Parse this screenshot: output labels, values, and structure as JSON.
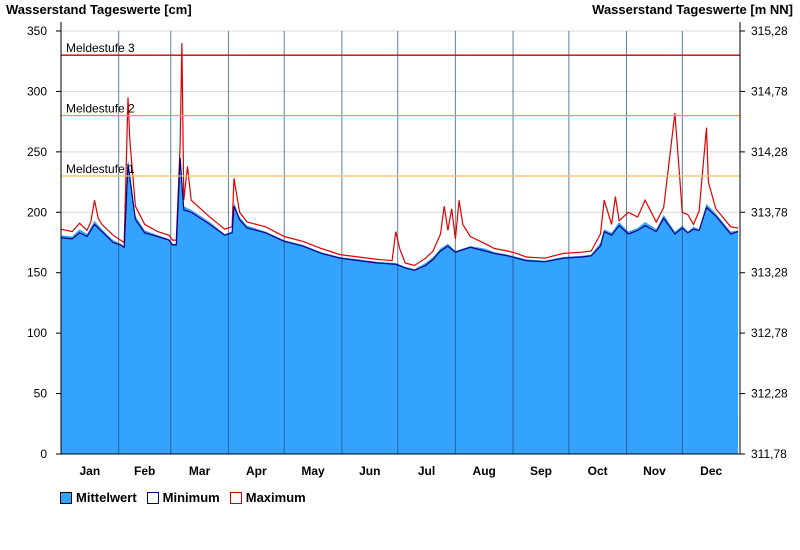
{
  "header": {
    "left_title": "Wasserstand Tageswerte [cm]",
    "right_title": "Wasserstand Tageswerte [m NN]"
  },
  "legend": [
    {
      "label": "Mittelwert",
      "fill": "#33a3ff",
      "border": "#000000"
    },
    {
      "label": "Minimum",
      "fill": "#ffffff",
      "border": "#000080"
    },
    {
      "label": "Maximum",
      "fill": "#ffffff",
      "border": "#cc0000"
    }
  ],
  "colors": {
    "area": "#33a3ff",
    "minimum_line": "#000080",
    "maximum_line": "#e00000",
    "meldestufe_1": "#f0c060",
    "meldestufe_2": "#f0a030",
    "meldestufe_3": "#cc0000",
    "grid": "#d8d8d8",
    "month_separator": "#1a4a80"
  },
  "chart_data": {
    "type": "area",
    "x_unit": "day of year",
    "months": [
      "Jan",
      "Feb",
      "Mar",
      "Apr",
      "May",
      "Jun",
      "Jul",
      "Aug",
      "Sep",
      "Oct",
      "Nov",
      "Dec"
    ],
    "ylim": [
      0,
      350
    ],
    "y_ticks": [
      0,
      50,
      100,
      150,
      200,
      250,
      300,
      350
    ],
    "y2_ticks": [
      "311,78",
      "312,28",
      "312,78",
      "313,28",
      "313,78",
      "314,28",
      "314,78",
      "315,28"
    ],
    "grid": true,
    "legend_position": "bottom-left",
    "thresholds": [
      {
        "label": "Meldestufe 1",
        "value": 230
      },
      {
        "label": "Meldestufe 2",
        "value": 280
      },
      {
        "label": "Meldestufe 3",
        "value": 330
      }
    ],
    "series": [
      {
        "name": "Mittelwert",
        "x": [
          0,
          6,
          10,
          14,
          18,
          22,
          28,
          32,
          34,
          36,
          40,
          45,
          52,
          58,
          60,
          62,
          64,
          66,
          70,
          80,
          88,
          92,
          93,
          96,
          100,
          110,
          120,
          130,
          140,
          150,
          160,
          170,
          180,
          185,
          190,
          196,
          200,
          204,
          208,
          212,
          220,
          228,
          233,
          240,
          245,
          250,
          260,
          270,
          280,
          285,
          290,
          292,
          296,
          300,
          305,
          310,
          314,
          320,
          324,
          330,
          334,
          337,
          340,
          343,
          347,
          352,
          360,
          364
        ],
        "y": [
          181,
          180,
          186,
          182,
          193,
          186,
          177,
          174,
          172,
          244,
          197,
          185,
          181,
          178,
          174,
          174,
          249,
          205,
          202,
          192,
          182,
          184,
          208,
          196,
          189,
          184,
          177,
          173,
          167,
          163,
          161,
          159,
          158,
          155,
          153,
          158,
          163,
          170,
          174,
          168,
          172,
          170,
          167,
          165,
          163,
          161,
          160,
          163,
          164,
          165,
          175,
          186,
          183,
          192,
          184,
          187,
          192,
          186,
          198,
          184,
          189,
          184,
          188,
          186,
          207,
          199,
          184,
          185
        ]
      },
      {
        "name": "Minimum",
        "x": [
          0,
          6,
          10,
          14,
          18,
          22,
          28,
          32,
          34,
          36,
          40,
          45,
          52,
          58,
          60,
          62,
          64,
          66,
          70,
          80,
          88,
          92,
          93,
          96,
          100,
          110,
          120,
          130,
          140,
          150,
          160,
          170,
          180,
          185,
          190,
          196,
          200,
          204,
          208,
          212,
          220,
          228,
          233,
          240,
          245,
          250,
          260,
          270,
          280,
          285,
          290,
          292,
          296,
          300,
          305,
          310,
          314,
          320,
          324,
          330,
          334,
          337,
          340,
          343,
          347,
          352,
          360,
          364
        ],
        "y": [
          179,
          178,
          183,
          180,
          190,
          184,
          175,
          173,
          171,
          240,
          194,
          183,
          180,
          177,
          173,
          173,
          245,
          202,
          200,
          190,
          181,
          183,
          205,
          194,
          187,
          183,
          176,
          172,
          166,
          162,
          160,
          158,
          157,
          154,
          152,
          156,
          161,
          168,
          172,
          167,
          171,
          168,
          166,
          164,
          162,
          160,
          159,
          162,
          163,
          164,
          172,
          184,
          181,
          189,
          182,
          185,
          189,
          184,
          195,
          182,
          187,
          183,
          186,
          185,
          204,
          197,
          182,
          184
        ]
      },
      {
        "name": "Maximum",
        "x": [
          0,
          6,
          10,
          14,
          16,
          18,
          20,
          22,
          28,
          32,
          34,
          36,
          37,
          40,
          45,
          52,
          58,
          60,
          62,
          64,
          65,
          66,
          68,
          70,
          80,
          88,
          92,
          93,
          96,
          100,
          110,
          120,
          130,
          140,
          150,
          160,
          170,
          178,
          180,
          182,
          185,
          190,
          196,
          200,
          204,
          206,
          208,
          210,
          212,
          214,
          216,
          220,
          228,
          233,
          240,
          245,
          250,
          260,
          270,
          280,
          285,
          290,
          292,
          296,
          298,
          300,
          305,
          310,
          314,
          320,
          324,
          330,
          334,
          337,
          340,
          343,
          347,
          348,
          352,
          360,
          364
        ],
        "y": [
          186,
          184,
          191,
          185,
          192,
          210,
          195,
          190,
          181,
          177,
          175,
          295,
          260,
          205,
          190,
          184,
          181,
          177,
          177,
          255,
          340,
          210,
          238,
          210,
          196,
          186,
          188,
          228,
          200,
          192,
          188,
          180,
          176,
          170,
          165,
          163,
          161,
          160,
          184,
          170,
          158,
          156,
          162,
          168,
          182,
          205,
          185,
          203,
          178,
          210,
          190,
          180,
          174,
          170,
          168,
          166,
          163,
          162,
          166,
          167,
          168,
          182,
          210,
          190,
          213,
          193,
          200,
          196,
          210,
          192,
          204,
          282,
          200,
          198,
          190,
          201,
          270,
          225,
          203,
          188,
          187
        ]
      }
    ]
  }
}
